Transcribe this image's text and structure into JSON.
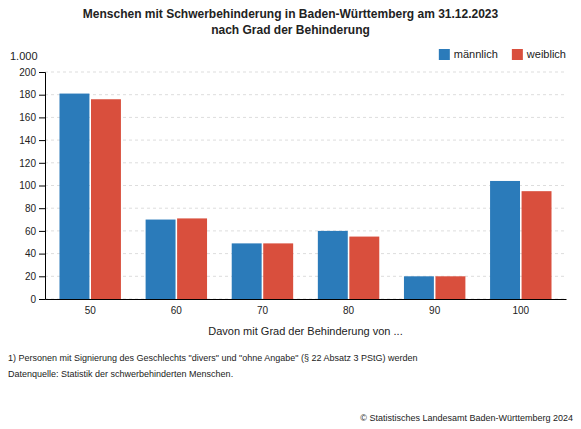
{
  "chart_data": {
    "type": "bar",
    "title": "Menschen mit Schwerbehinderung in Baden-Württemberg am 31.12.2023",
    "subtitle": "nach Grad der Behinderung",
    "ylabel": "1.000",
    "xlabel": "Davon mit Grad der Behinderung von ...",
    "categories": [
      50,
      60,
      70,
      80,
      90,
      100
    ],
    "series": [
      {
        "name": "männlich",
        "color": "#2b7bba",
        "values": [
          181,
          70,
          49,
          60,
          20,
          104
        ]
      },
      {
        "name": "weiblich",
        "color": "#d94f3d",
        "values": [
          176,
          71,
          49,
          55,
          20,
          95
        ]
      }
    ],
    "ylim": [
      0,
      200
    ],
    "yticks": [
      0,
      20,
      40,
      60,
      80,
      100,
      120,
      140,
      160,
      180,
      200
    ],
    "grid": true,
    "legend": "upper right",
    "annotations": [
      "1) Personen mit Signierung des Geschlechts \"divers\" und \"ohne Angabe\" (§ 22 Absatz 3 PStG) werden",
      "Datenquelle: Statistik der schwerbehinderten Menschen.",
      "© Statistisches Landesamt Baden-Württemberg 2024"
    ]
  }
}
